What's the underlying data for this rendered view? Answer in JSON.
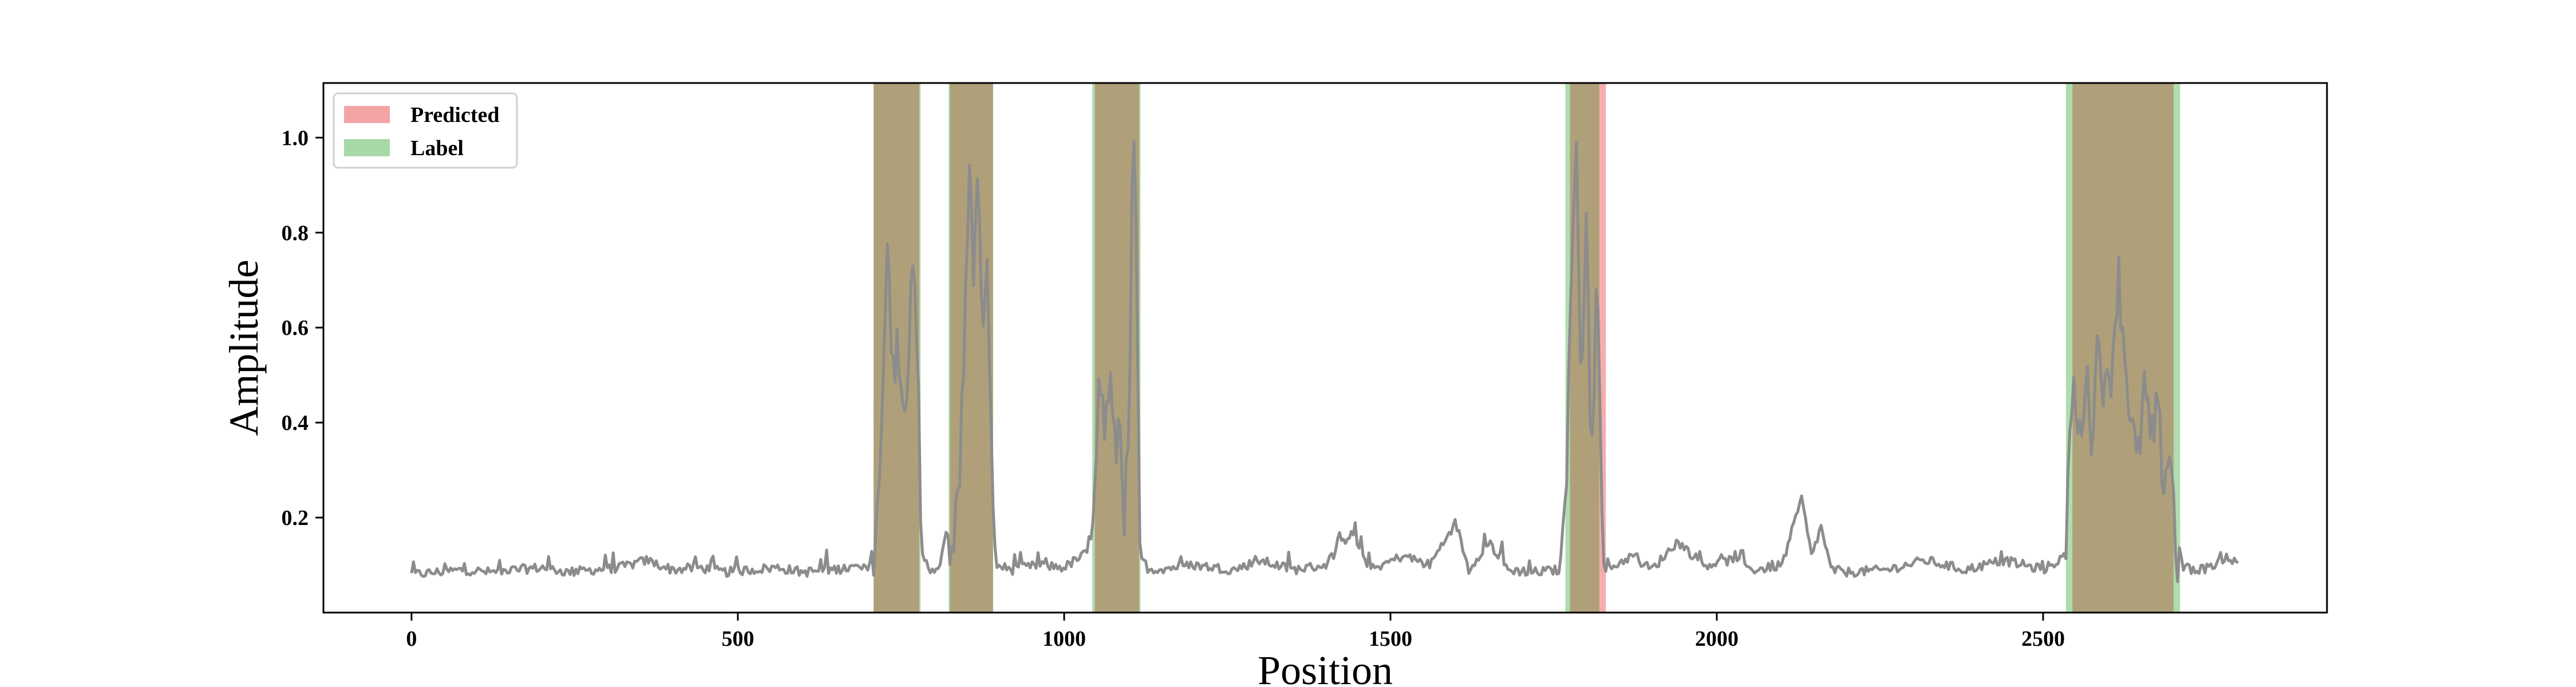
{
  "chart_data": {
    "type": "line",
    "xlabel": "Position",
    "ylabel": "Amplitude",
    "xlim": [
      -135,
      2935
    ],
    "ylim": [
      0.0,
      1.115
    ],
    "x_ticks": [
      0,
      500,
      1000,
      1500,
      2000,
      2500
    ],
    "y_ticks": [
      0.2,
      0.4,
      0.6,
      0.8,
      1.0
    ],
    "x_tick_labels": [
      "0",
      "500",
      "1000",
      "1500",
      "2000",
      "2500"
    ],
    "y_tick_labels": [
      "0.2",
      "0.4",
      "0.6",
      "0.8",
      "1.0"
    ],
    "grid": false,
    "legend": {
      "placement": "top-left",
      "entries": [
        {
          "label": "Predicted",
          "color": "#f4a4a4"
        },
        {
          "label": "Label",
          "color": "#a6d9a6"
        }
      ]
    },
    "colors": {
      "signal": "#8c8c8c",
      "predicted": "#f4a4a4",
      "label": "#a6d9a6",
      "overlap": "#b0a07a"
    },
    "predicted_regions": [
      [
        708,
        778
      ],
      [
        825,
        891
      ],
      [
        1047,
        1115
      ],
      [
        1775,
        1830
      ],
      [
        2545,
        2700
      ]
    ],
    "label_regions": [
      [
        708,
        780
      ],
      [
        823,
        891
      ],
      [
        1043,
        1117
      ],
      [
        1768,
        1820
      ],
      [
        2535,
        2710
      ]
    ],
    "signal": {
      "baseline": 0.085,
      "length": 2800,
      "points": [
        [
          0,
          0.08
        ],
        [
          40,
          0.085
        ],
        [
          80,
          0.09
        ],
        [
          120,
          0.085
        ],
        [
          160,
          0.09
        ],
        [
          200,
          0.095
        ],
        [
          240,
          0.085
        ],
        [
          280,
          0.09
        ],
        [
          320,
          0.095
        ],
        [
          360,
          0.11
        ],
        [
          400,
          0.09
        ],
        [
          440,
          0.095
        ],
        [
          480,
          0.085
        ],
        [
          520,
          0.09
        ],
        [
          560,
          0.095
        ],
        [
          600,
          0.085
        ],
        [
          640,
          0.09
        ],
        [
          680,
          0.095
        ],
        [
          700,
          0.09
        ],
        [
          710,
          0.15
        ],
        [
          720,
          0.4
        ],
        [
          730,
          0.78
        ],
        [
          738,
          0.5
        ],
        [
          745,
          0.6
        ],
        [
          752,
          0.45
        ],
        [
          760,
          0.5
        ],
        [
          768,
          0.72
        ],
        [
          775,
          0.55
        ],
        [
          782,
          0.12
        ],
        [
          795,
          0.09
        ],
        [
          810,
          0.1
        ],
        [
          820,
          0.17
        ],
        [
          830,
          0.12
        ],
        [
          840,
          0.3
        ],
        [
          848,
          0.6
        ],
        [
          855,
          0.9
        ],
        [
          862,
          0.72
        ],
        [
          868,
          0.88
        ],
        [
          875,
          0.62
        ],
        [
          882,
          0.78
        ],
        [
          888,
          0.35
        ],
        [
          895,
          0.1
        ],
        [
          920,
          0.09
        ],
        [
          960,
          0.1
        ],
        [
          1000,
          0.095
        ],
        [
          1040,
          0.13
        ],
        [
          1048,
          0.35
        ],
        [
          1055,
          0.5
        ],
        [
          1062,
          0.38
        ],
        [
          1070,
          0.5
        ],
        [
          1078,
          0.32
        ],
        [
          1085,
          0.42
        ],
        [
          1092,
          0.22
        ],
        [
          1100,
          0.35
        ],
        [
          1105,
          1.05
        ],
        [
          1110,
          0.78
        ],
        [
          1116,
          0.12
        ],
        [
          1130,
          0.09
        ],
        [
          1200,
          0.1
        ],
        [
          1260,
          0.09
        ],
        [
          1300,
          0.11
        ],
        [
          1350,
          0.09
        ],
        [
          1400,
          0.1
        ],
        [
          1440,
          0.17
        ],
        [
          1470,
          0.09
        ],
        [
          1520,
          0.12
        ],
        [
          1560,
          0.1
        ],
        [
          1600,
          0.19
        ],
        [
          1620,
          0.09
        ],
        [
          1650,
          0.15
        ],
        [
          1680,
          0.09
        ],
        [
          1720,
          0.085
        ],
        [
          1760,
          0.09
        ],
        [
          1770,
          0.3
        ],
        [
          1778,
          0.7
        ],
        [
          1785,
          1.04
        ],
        [
          1792,
          0.5
        ],
        [
          1800,
          0.85
        ],
        [
          1808,
          0.3
        ],
        [
          1816,
          0.72
        ],
        [
          1824,
          0.2
        ],
        [
          1832,
          0.09
        ],
        [
          1870,
          0.12
        ],
        [
          1900,
          0.09
        ],
        [
          1940,
          0.15
        ],
        [
          1980,
          0.1
        ],
        [
          2020,
          0.11
        ],
        [
          2060,
          0.09
        ],
        [
          2100,
          0.1
        ],
        [
          2130,
          0.24
        ],
        [
          2145,
          0.12
        ],
        [
          2160,
          0.18
        ],
        [
          2175,
          0.09
        ],
        [
          2200,
          0.085
        ],
        [
          2260,
          0.09
        ],
        [
          2320,
          0.11
        ],
        [
          2380,
          0.09
        ],
        [
          2440,
          0.11
        ],
        [
          2500,
          0.09
        ],
        [
          2535,
          0.12
        ],
        [
          2545,
          0.5
        ],
        [
          2555,
          0.35
        ],
        [
          2565,
          0.5
        ],
        [
          2575,
          0.38
        ],
        [
          2585,
          0.6
        ],
        [
          2595,
          0.45
        ],
        [
          2605,
          0.52
        ],
        [
          2615,
          0.72
        ],
        [
          2625,
          0.55
        ],
        [
          2635,
          0.4
        ],
        [
          2645,
          0.3
        ],
        [
          2655,
          0.48
        ],
        [
          2665,
          0.35
        ],
        [
          2675,
          0.42
        ],
        [
          2685,
          0.28
        ],
        [
          2695,
          0.35
        ],
        [
          2705,
          0.1
        ],
        [
          2730,
          0.09
        ],
        [
          2760,
          0.095
        ],
        [
          2780,
          0.12
        ],
        [
          2800,
          0.1
        ]
      ]
    }
  }
}
